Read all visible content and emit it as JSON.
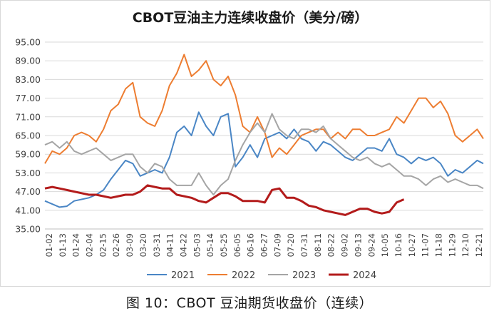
{
  "caption": "图 10：CBOT 豆油期货收盘价（连续）",
  "chart_data": {
    "type": "line",
    "title": "CBOT豆油主力连续收盘价（美分/磅）",
    "xlabel": "",
    "ylabel": "",
    "ylim": [
      35,
      95
    ],
    "y_ticks": [
      "35.00",
      "41.00",
      "47.00",
      "53.00",
      "59.00",
      "65.00",
      "71.00",
      "77.00",
      "83.00",
      "89.00",
      "95.00"
    ],
    "grid": true,
    "legend_position": "bottom",
    "x_tick_labels": [
      "01-02",
      "01-13",
      "01-24",
      "02-04",
      "02-15",
      "02-26",
      "03-09",
      "03-20",
      "03-31",
      "04-11",
      "04-22",
      "05-03",
      "05-14",
      "05-25",
      "06-05",
      "06-16",
      "06-27",
      "07-09",
      "07-20",
      "07-31",
      "08-11",
      "08-22",
      "09-02",
      "09-13",
      "09-24",
      "10-05",
      "10-16",
      "10-27",
      "11-07",
      "11-18",
      "11-29",
      "12-10",
      "12-21"
    ],
    "x_day_range": [
      2,
      361
    ],
    "series": [
      {
        "name": "2021",
        "color": "#4a86c5",
        "x": [
          2,
          8,
          14,
          20,
          26,
          32,
          38,
          44,
          50,
          56,
          62,
          68,
          74,
          80,
          86,
          92,
          98,
          104,
          110,
          116,
          122,
          128,
          134,
          140,
          146,
          152,
          158,
          164,
          170,
          176,
          182,
          188,
          194,
          200,
          206,
          212,
          218,
          224,
          230,
          236,
          242,
          248,
          254,
          260,
          266,
          272,
          278,
          284,
          290,
          296,
          302,
          308,
          314,
          320,
          326,
          332,
          338,
          344,
          350,
          356,
          361
        ],
        "y": [
          44.0,
          43.0,
          42.0,
          42.3,
          44.0,
          44.5,
          45.0,
          46.0,
          47.5,
          51.0,
          54.0,
          57.0,
          56.0,
          52.0,
          53.0,
          54.0,
          53.0,
          58.0,
          66.0,
          68.0,
          65.0,
          72.5,
          68.0,
          65.0,
          71.0,
          72.0,
          55.0,
          58.0,
          62.0,
          58.0,
          64.0,
          65.0,
          66.0,
          64.0,
          67.0,
          64.0,
          63.0,
          60.0,
          63.0,
          62.0,
          60.0,
          58.0,
          57.0,
          59.0,
          61.0,
          61.0,
          60.0,
          64.0,
          59.0,
          58.0,
          56.0,
          58.0,
          57.0,
          58.0,
          56.0,
          52.0,
          54.0,
          53.0,
          55.0,
          57.0,
          56.0
        ]
      },
      {
        "name": "2022",
        "color": "#ed7d31",
        "x": [
          2,
          8,
          14,
          20,
          26,
          32,
          38,
          44,
          50,
          56,
          62,
          68,
          74,
          80,
          86,
          92,
          98,
          104,
          110,
          116,
          122,
          128,
          134,
          140,
          146,
          152,
          158,
          164,
          170,
          176,
          182,
          188,
          194,
          200,
          206,
          212,
          218,
          224,
          230,
          236,
          242,
          248,
          254,
          260,
          266,
          272,
          278,
          284,
          290,
          296,
          302,
          308,
          314,
          320,
          326,
          332,
          338,
          344,
          350,
          356,
          361
        ],
        "y": [
          56.0,
          60.0,
          59.0,
          61.0,
          65.0,
          66.0,
          65.0,
          63.0,
          67.0,
          73.0,
          75.0,
          80.0,
          82.0,
          71.0,
          69.0,
          68.0,
          73.0,
          81.0,
          85.0,
          91.0,
          84.0,
          86.0,
          89.0,
          83.0,
          81.0,
          84.0,
          78.0,
          68.0,
          66.0,
          71.0,
          66.0,
          58.0,
          61.0,
          59.0,
          62.0,
          65.0,
          66.0,
          67.0,
          67.0,
          64.0,
          66.0,
          64.0,
          67.0,
          67.0,
          65.0,
          65.0,
          66.0,
          67.0,
          71.0,
          69.0,
          73.0,
          77.0,
          77.0,
          74.0,
          76.0,
          72.0,
          65.0,
          63.0,
          65.0,
          67.0,
          64.0
        ]
      },
      {
        "name": "2023",
        "color": "#a5a5a5",
        "x": [
          2,
          8,
          14,
          20,
          26,
          32,
          38,
          44,
          50,
          56,
          62,
          68,
          74,
          80,
          86,
          92,
          98,
          104,
          110,
          116,
          122,
          128,
          134,
          140,
          146,
          152,
          158,
          164,
          170,
          176,
          182,
          188,
          194,
          200,
          206,
          212,
          218,
          224,
          230,
          236,
          242,
          248,
          254,
          260,
          266,
          272,
          278,
          284,
          290,
          296,
          302,
          308,
          314,
          320,
          326,
          332,
          338,
          344,
          350,
          356,
          361
        ],
        "y": [
          62.0,
          63.0,
          61.0,
          63.0,
          60.0,
          59.0,
          60.0,
          61.0,
          59.0,
          57.0,
          58.0,
          59.0,
          59.0,
          55.0,
          53.0,
          56.0,
          55.0,
          51.0,
          49.0,
          49.0,
          49.0,
          53.0,
          49.0,
          46.0,
          49.0,
          51.0,
          57.0,
          62.0,
          66.0,
          69.0,
          66.0,
          72.0,
          67.0,
          65.0,
          64.0,
          67.0,
          67.0,
          66.0,
          68.0,
          64.0,
          62.0,
          60.0,
          58.0,
          57.0,
          58.0,
          56.0,
          55.0,
          56.0,
          54.0,
          52.0,
          52.0,
          51.0,
          49.0,
          51.0,
          52.0,
          50.0,
          51.0,
          50.0,
          49.0,
          49.0,
          48.0
        ]
      },
      {
        "name": "2024",
        "color": "#b31b1b",
        "x": [
          2,
          8,
          14,
          20,
          26,
          32,
          38,
          44,
          50,
          56,
          62,
          68,
          74,
          80,
          86,
          92,
          98,
          104,
          110,
          116,
          122,
          128,
          134,
          140,
          146,
          152,
          158,
          164,
          170,
          176,
          182,
          188,
          194,
          200,
          206,
          212,
          218,
          224,
          230,
          236,
          242,
          248,
          254,
          260,
          266,
          272,
          278,
          284,
          290,
          296
        ],
        "y": [
          48.0,
          48.5,
          48.0,
          47.5,
          47.0,
          46.5,
          46.0,
          46.0,
          45.5,
          45.0,
          45.5,
          46.0,
          46.0,
          47.0,
          49.0,
          48.5,
          48.0,
          48.0,
          46.0,
          45.5,
          45.0,
          44.0,
          43.5,
          45.0,
          46.5,
          46.5,
          45.5,
          44.0,
          44.0,
          44.0,
          43.5,
          47.5,
          48.0,
          45.0,
          45.0,
          44.0,
          42.5,
          42.0,
          41.0,
          40.5,
          40.0,
          39.5,
          40.5,
          41.5,
          41.5,
          40.5,
          40.0,
          40.5,
          43.5,
          44.5
        ]
      }
    ]
  }
}
